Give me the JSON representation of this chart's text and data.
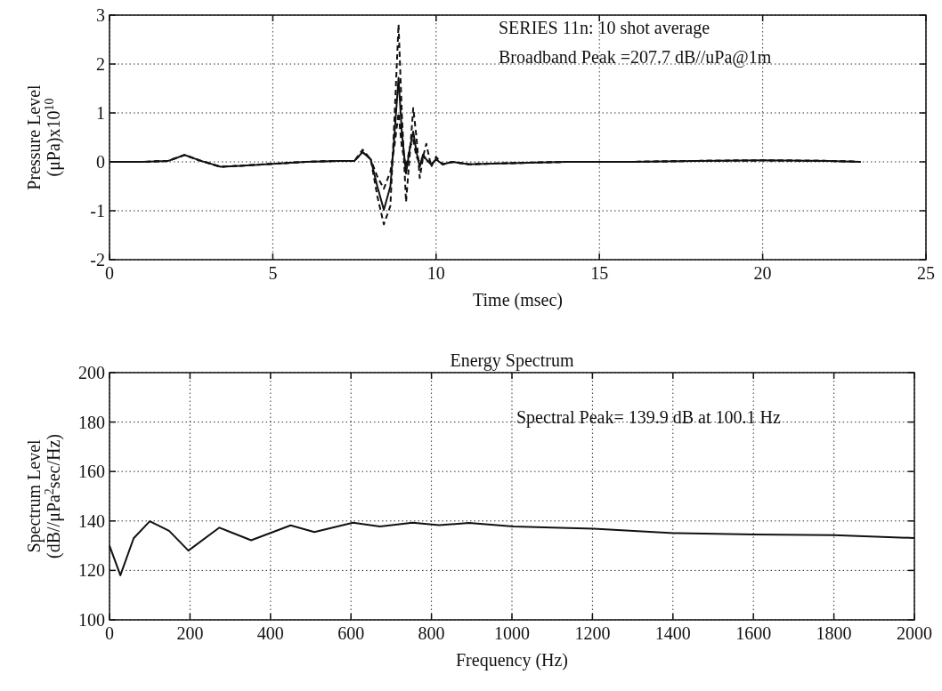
{
  "chart_data": [
    {
      "type": "line",
      "xlabel": "Time (msec)",
      "ylabel": "Pressure Level\n(μPa)x10$^{10}$",
      "xlim": [
        0,
        25
      ],
      "xticks": [
        0,
        5,
        10,
        15,
        20,
        25
      ],
      "ylim": [
        -2,
        3
      ],
      "yticks": [
        -2,
        -1,
        0,
        1,
        2,
        3
      ],
      "grid": true,
      "annotations": [
        "SERIES 11n: 10 shot average",
        "Broadband Peak =207.7 dB//uPa@1m"
      ],
      "x": [
        0,
        1,
        1.8,
        2.3,
        2.8,
        3.4,
        4,
        5,
        6,
        7,
        7.5,
        7.75,
        8.0,
        8.2,
        8.4,
        8.6,
        8.72,
        8.85,
        8.95,
        9.08,
        9.2,
        9.3,
        9.4,
        9.5,
        9.6,
        9.7,
        9.85,
        10,
        10.2,
        10.5,
        11,
        12,
        14,
        16,
        18,
        20,
        22,
        23
      ],
      "series": [
        {
          "color": "#111111",
          "line_style": "solid",
          "values": [
            0,
            0,
            0.02,
            0.14,
            0.02,
            -0.1,
            -0.08,
            -0.04,
            0,
            0.02,
            0.02,
            0.2,
            0.05,
            -0.5,
            -0.98,
            -0.5,
            0.5,
            1.72,
            0.6,
            -0.24,
            0.3,
            0.62,
            0.2,
            -0.1,
            0.15,
            0.05,
            -0.05,
            0.05,
            -0.05,
            0,
            -0.05,
            -0.03,
            0,
            0,
            0.02,
            0.03,
            0.02,
            0
          ]
        },
        {
          "color": "#111111",
          "line_style": "dashed",
          "values": [
            0,
            0,
            0.02,
            0.14,
            0.02,
            -0.1,
            -0.08,
            -0.04,
            0,
            0.02,
            0.02,
            0.25,
            0.05,
            -0.7,
            -1.28,
            -0.9,
            0.8,
            2.81,
            1.0,
            -0.82,
            0.2,
            1.1,
            0.5,
            -0.33,
            0.1,
            0.37,
            -0.1,
            0.1,
            -0.05,
            0,
            -0.05,
            -0.03,
            0,
            0,
            0.02,
            0.03,
            0.02,
            0
          ]
        },
        {
          "color": "#111111",
          "line_style": "dashed",
          "values": [
            0,
            0,
            0.02,
            0.14,
            0.02,
            -0.1,
            -0.08,
            -0.04,
            0,
            0.02,
            0.02,
            0.2,
            0.05,
            -0.3,
            -0.55,
            -0.2,
            0.3,
            1.0,
            0.3,
            -0.1,
            0.3,
            0.45,
            0.1,
            0,
            0.1,
            0.05,
            -0.05,
            0.05,
            -0.05,
            0,
            -0.05,
            -0.03,
            0,
            0,
            0.02,
            0.03,
            0.02,
            0
          ]
        }
      ]
    },
    {
      "type": "line",
      "title": "Energy Spectrum",
      "xlabel": "Frequency (Hz)",
      "ylabel": "Spectrum Level\n(dB//μPa$^{2}$sec/Hz)",
      "xlim": [
        0,
        2000
      ],
      "xticks": [
        0,
        200,
        400,
        600,
        800,
        1000,
        1200,
        1400,
        1600,
        1800,
        2000
      ],
      "ylim": [
        100,
        200
      ],
      "yticks": [
        100,
        120,
        140,
        160,
        180,
        200
      ],
      "grid": true,
      "annotations": [
        "Spectral Peak= 139.9 dB at 100.1 Hz"
      ],
      "x": [
        0,
        27,
        60,
        100,
        148,
        196,
        273,
        352,
        450,
        509,
        605,
        672,
        753,
        819,
        893,
        1004,
        1100,
        1203,
        1402,
        1601,
        1800,
        2000
      ],
      "series": [
        {
          "color": "#111111",
          "line_style": "solid",
          "values": [
            130,
            118,
            133,
            139.9,
            136,
            128,
            137.3,
            132.2,
            138.2,
            135.5,
            139.3,
            137.8,
            139.3,
            138.3,
            139.2,
            137.8,
            137.3,
            136.9,
            135.1,
            134.5,
            134.3,
            133.1
          ]
        }
      ]
    }
  ]
}
